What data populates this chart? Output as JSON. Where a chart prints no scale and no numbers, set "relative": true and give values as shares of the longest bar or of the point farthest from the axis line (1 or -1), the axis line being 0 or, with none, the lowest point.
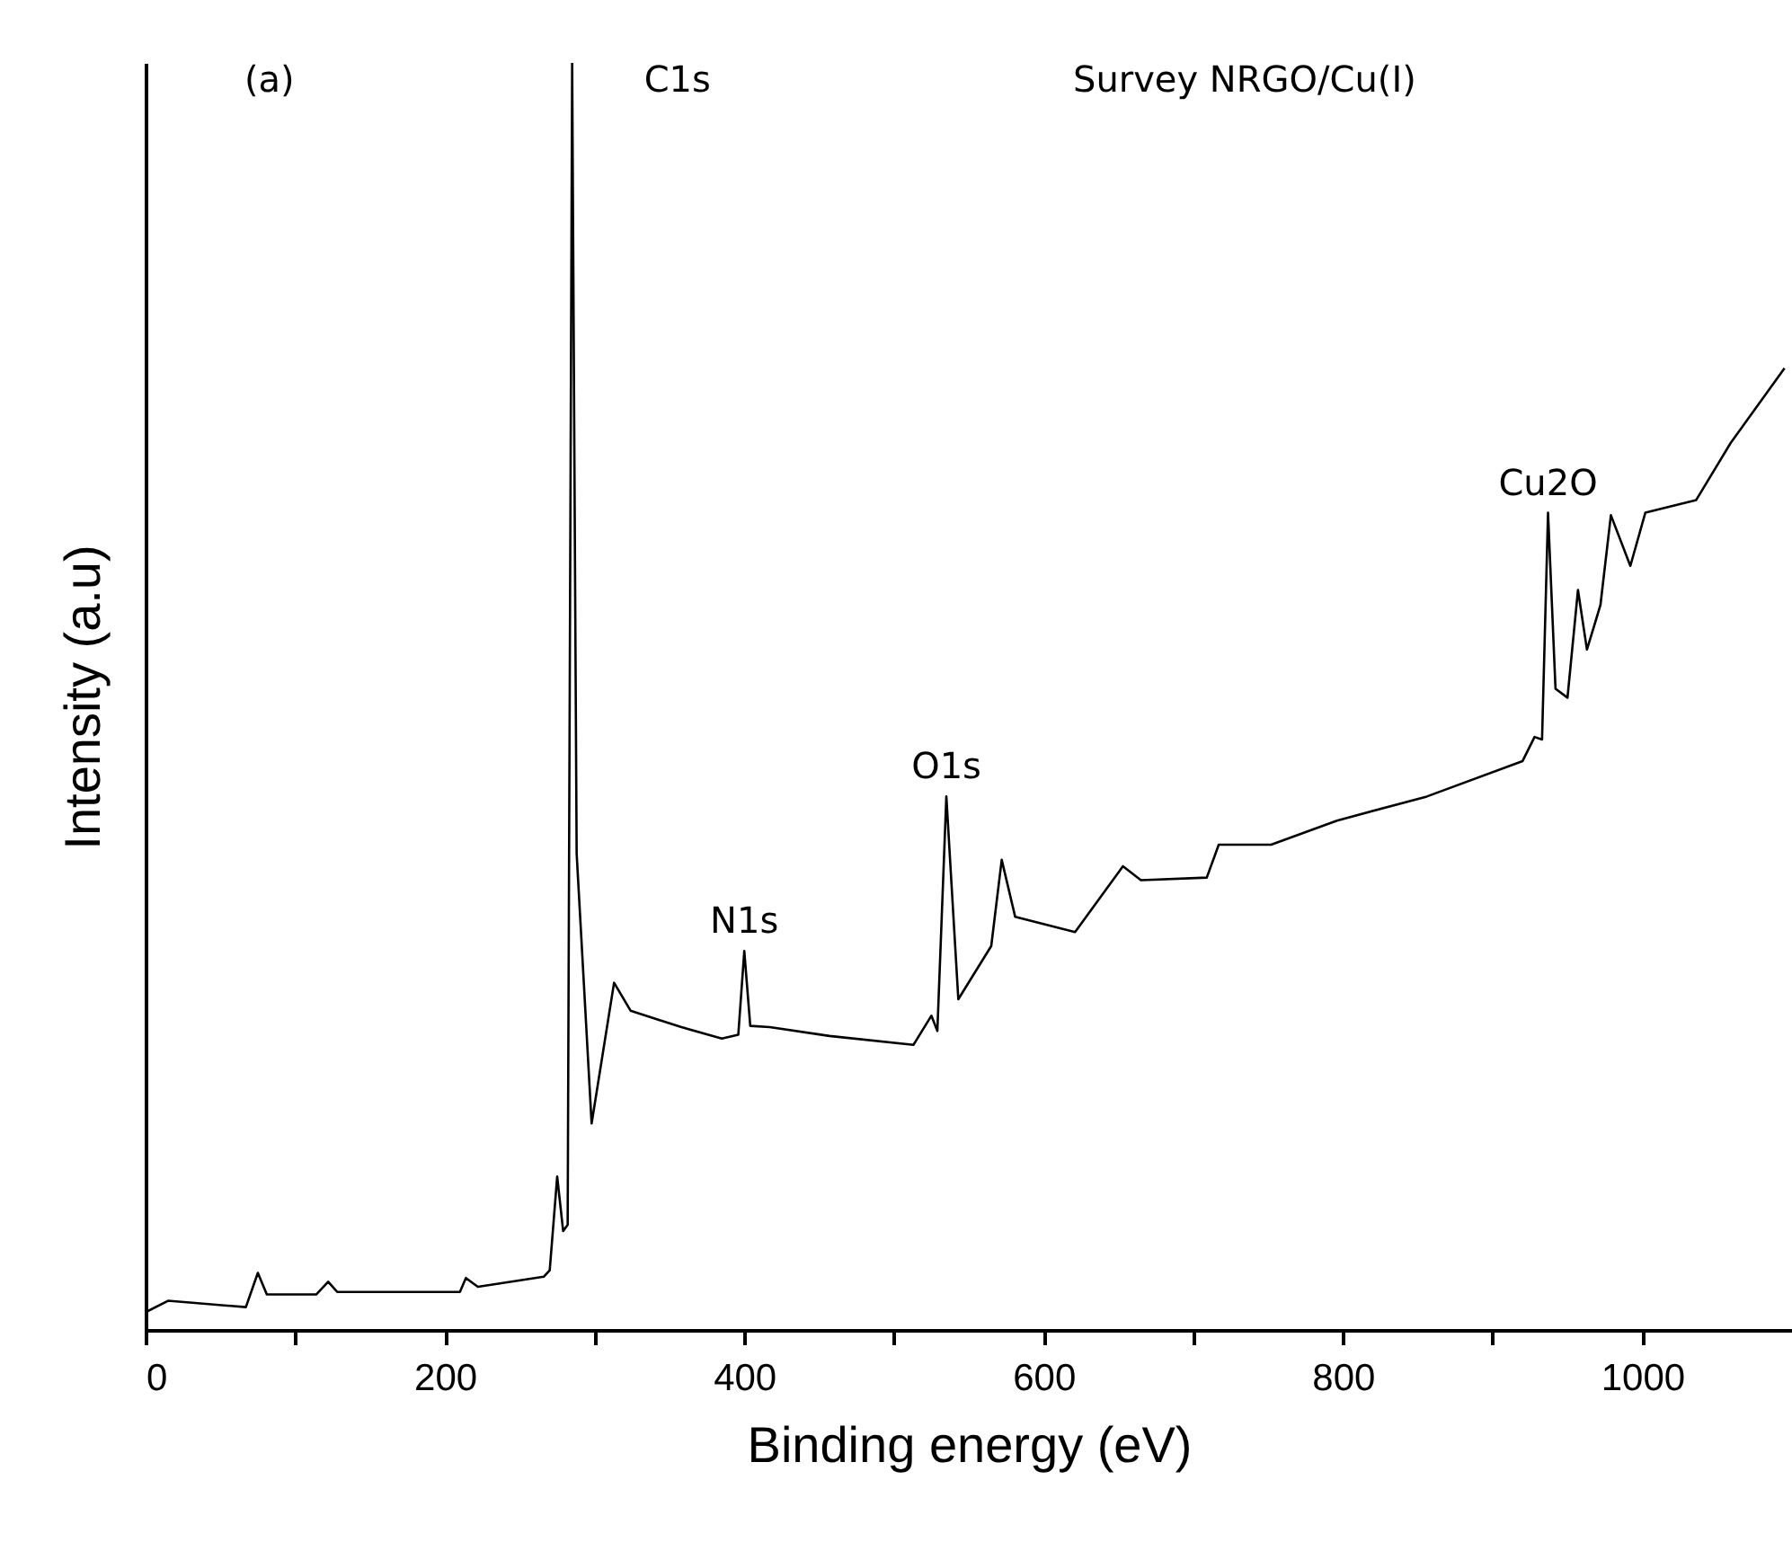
{
  "chart_data": {
    "type": "line",
    "relative": true,
    "xlabel": "Binding energy (eV)",
    "ylabel": "Intensity (a.u)",
    "color": "#000000",
    "x": [
      0,
      15,
      67,
      75,
      81,
      114,
      122,
      128,
      210,
      214,
      222,
      266,
      270,
      275,
      279,
      282,
      285,
      288,
      298,
      313,
      324,
      342,
      358,
      385,
      396,
      400,
      404,
      417,
      457,
      513,
      525,
      529,
      535,
      543,
      565,
      572,
      581,
      621,
      653,
      665,
      709,
      717,
      752,
      796,
      856,
      920,
      928,
      933,
      937,
      942,
      950,
      957,
      963,
      972,
      979,
      992,
      1002,
      1036,
      1059,
      1095
    ],
    "values": [
      0.014,
      0.023,
      0.018,
      0.045,
      0.028,
      0.028,
      0.038,
      0.03,
      0.03,
      0.041,
      0.034,
      0.042,
      0.047,
      0.121,
      0.078,
      0.083,
      1,
      0.376,
      0.163,
      0.274,
      0.252,
      0.245,
      0.239,
      0.23,
      0.233,
      0.299,
      0.24,
      0.239,
      0.232,
      0.225,
      0.248,
      0.236,
      0.421,
      0.261,
      0.303,
      0.371,
      0.326,
      0.314,
      0.366,
      0.355,
      0.357,
      0.383,
      0.383,
      0.402,
      0.421,
      0.449,
      0.468,
      0.466,
      0.645,
      0.506,
      0.499,
      0.584,
      0.537,
      0.572,
      0.643,
      0.603,
      0.645,
      0.655,
      0.7,
      0.759
    ],
    "xlim": [
      0,
      1100
    ],
    "xticks": [
      0,
      {
        "value": 100,
        "label": null
      },
      200,
      {
        "value": 300,
        "label": null
      },
      400,
      {
        "value": 500,
        "label": null
      },
      600,
      {
        "value": 700,
        "label": null
      },
      800,
      {
        "value": 900,
        "label": null
      },
      1000
    ],
    "annotations": [
      "(a)",
      {
        "text": "C1s",
        "x": 285,
        "y": 1
      },
      "Survey NRGO/Cu(I)",
      {
        "text": "N1s",
        "x": 400,
        "y": 0.299
      },
      {
        "text": "O1s",
        "x": 535,
        "y": 0.421
      },
      {
        "text": "Cu2O",
        "x": 937,
        "y": 0.645
      }
    ],
    "grid": false
  }
}
